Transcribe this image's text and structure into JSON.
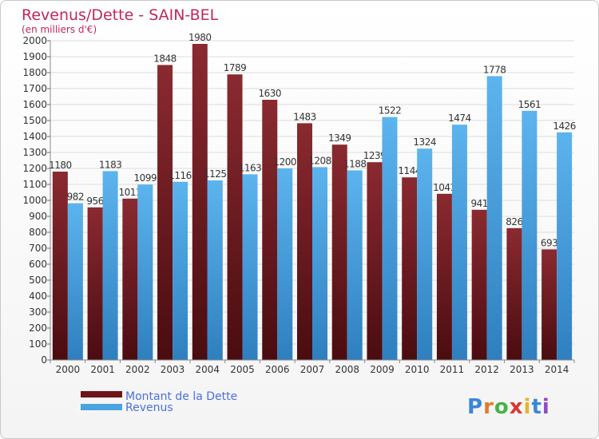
{
  "chart_data": {
    "type": "bar",
    "title": "Revenus/Dette - SAIN-BEL",
    "subtitle": "(en milliers d'€)",
    "xlabel": "",
    "ylabel": "",
    "ylim": [
      0,
      2000
    ],
    "yticks": [
      0,
      100,
      200,
      300,
      400,
      500,
      600,
      700,
      800,
      900,
      1000,
      1100,
      1200,
      1300,
      1400,
      1500,
      1600,
      1700,
      1800,
      1900,
      2000
    ],
    "grid": true,
    "legend_position": "bottom-left",
    "categories": [
      "2000",
      "2001",
      "2002",
      "2003",
      "2004",
      "2005",
      "2006",
      "2007",
      "2008",
      "2009",
      "2010",
      "2011",
      "2012",
      "2013",
      "2014"
    ],
    "series": [
      {
        "name": "Montant de la Dette",
        "color": "#7a1e22",
        "values": [
          1180,
          956,
          1011,
          1848,
          1980,
          1789,
          1630,
          1483,
          1349,
          1239,
          1144,
          1041,
          941,
          826,
          693
        ]
      },
      {
        "name": "Revenus",
        "color": "#4aa3e0",
        "values": [
          982,
          1183,
          1099,
          1116,
          1125,
          1163,
          1200,
          1208,
          1188,
          1522,
          1324,
          1474,
          1778,
          1561,
          1426
        ]
      }
    ]
  },
  "colors": {
    "title": "#c0275b",
    "legend_text": "#4a6fe0",
    "debt_top": "#8a2a30",
    "debt_bottom": "#4a0c10",
    "rev_top": "#5cb4ee",
    "rev_bottom": "#2f7fbf"
  },
  "logo": {
    "text": "Proxiti"
  }
}
